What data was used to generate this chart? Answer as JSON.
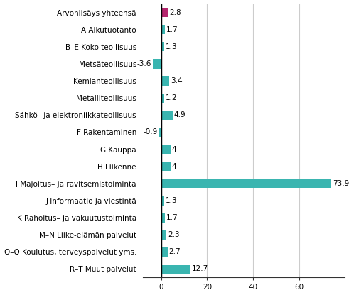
{
  "categories": [
    "Arvonlisäys yhteensä",
    "A Alkutuotanto",
    "B–E Koko teollisuus",
    "Metsäteollisuus",
    "Kemianteollisuus",
    "Metalliteollisuus",
    "Sähkö– ja elektroniikkateollisuus",
    "F Rakentaminen",
    "G Kauppa",
    "H Liikenne",
    "I Majoitus– ja ravitsemistoiminta",
    "J Informaatio ja viestintä",
    "K Rahoitus– ja vakuutustoiminta",
    "M–N Liike-elämän palvelut",
    "O–Q Koulutus, terveyspalvelut yms.",
    "R–T Muut palvelut"
  ],
  "values": [
    2.8,
    1.7,
    1.3,
    -3.6,
    3.4,
    1.2,
    4.9,
    -0.9,
    4.0,
    4.0,
    73.9,
    1.3,
    1.7,
    2.3,
    2.7,
    12.7
  ],
  "bar_colors": [
    "#b5266e",
    "#3ab5b0",
    "#3ab5b0",
    "#3ab5b0",
    "#3ab5b0",
    "#3ab5b0",
    "#3ab5b0",
    "#3ab5b0",
    "#3ab5b0",
    "#3ab5b0",
    "#3ab5b0",
    "#3ab5b0",
    "#3ab5b0",
    "#3ab5b0",
    "#3ab5b0",
    "#3ab5b0"
  ],
  "xlim": [
    -8,
    80
  ],
  "xticks": [
    0,
    20,
    40,
    60
  ],
  "label_fontsize": 7.5,
  "value_fontsize": 7.5,
  "background_color": "#ffffff",
  "grid_color": "#cccccc",
  "bar_height": 0.55
}
